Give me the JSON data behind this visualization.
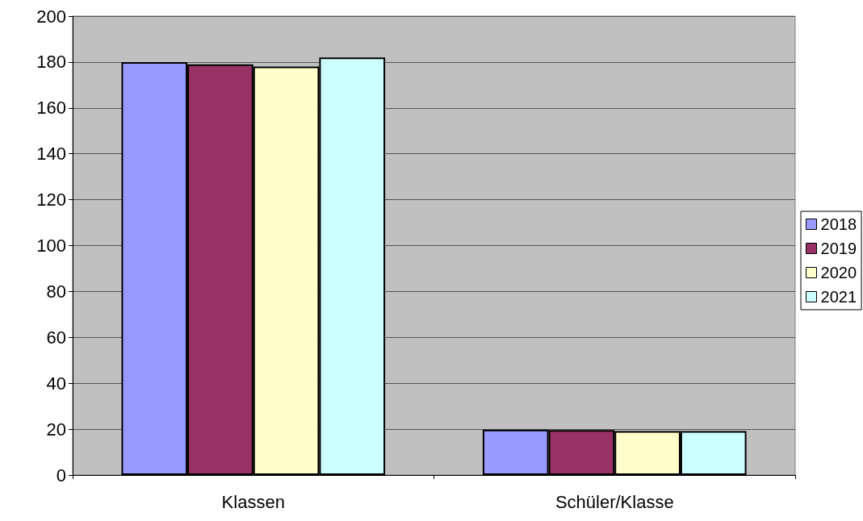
{
  "chart_data": {
    "type": "bar",
    "categories": [
      "Klassen",
      "Schüler/Klasse"
    ],
    "series": [
      {
        "name": "2018",
        "color": "#9999ff",
        "values": [
          180,
          19.8
        ]
      },
      {
        "name": "2019",
        "color": "#993366",
        "values": [
          179,
          19.6
        ]
      },
      {
        "name": "2020",
        "color": "#ffffcc",
        "values": [
          178,
          19.2
        ]
      },
      {
        "name": "2021",
        "color": "#ccffff",
        "values": [
          182,
          19.2
        ]
      }
    ],
    "ylim": [
      0,
      200
    ],
    "yticks": [
      0,
      20,
      40,
      60,
      80,
      100,
      120,
      140,
      160,
      180,
      200
    ],
    "grid": "y",
    "legend": "right"
  }
}
